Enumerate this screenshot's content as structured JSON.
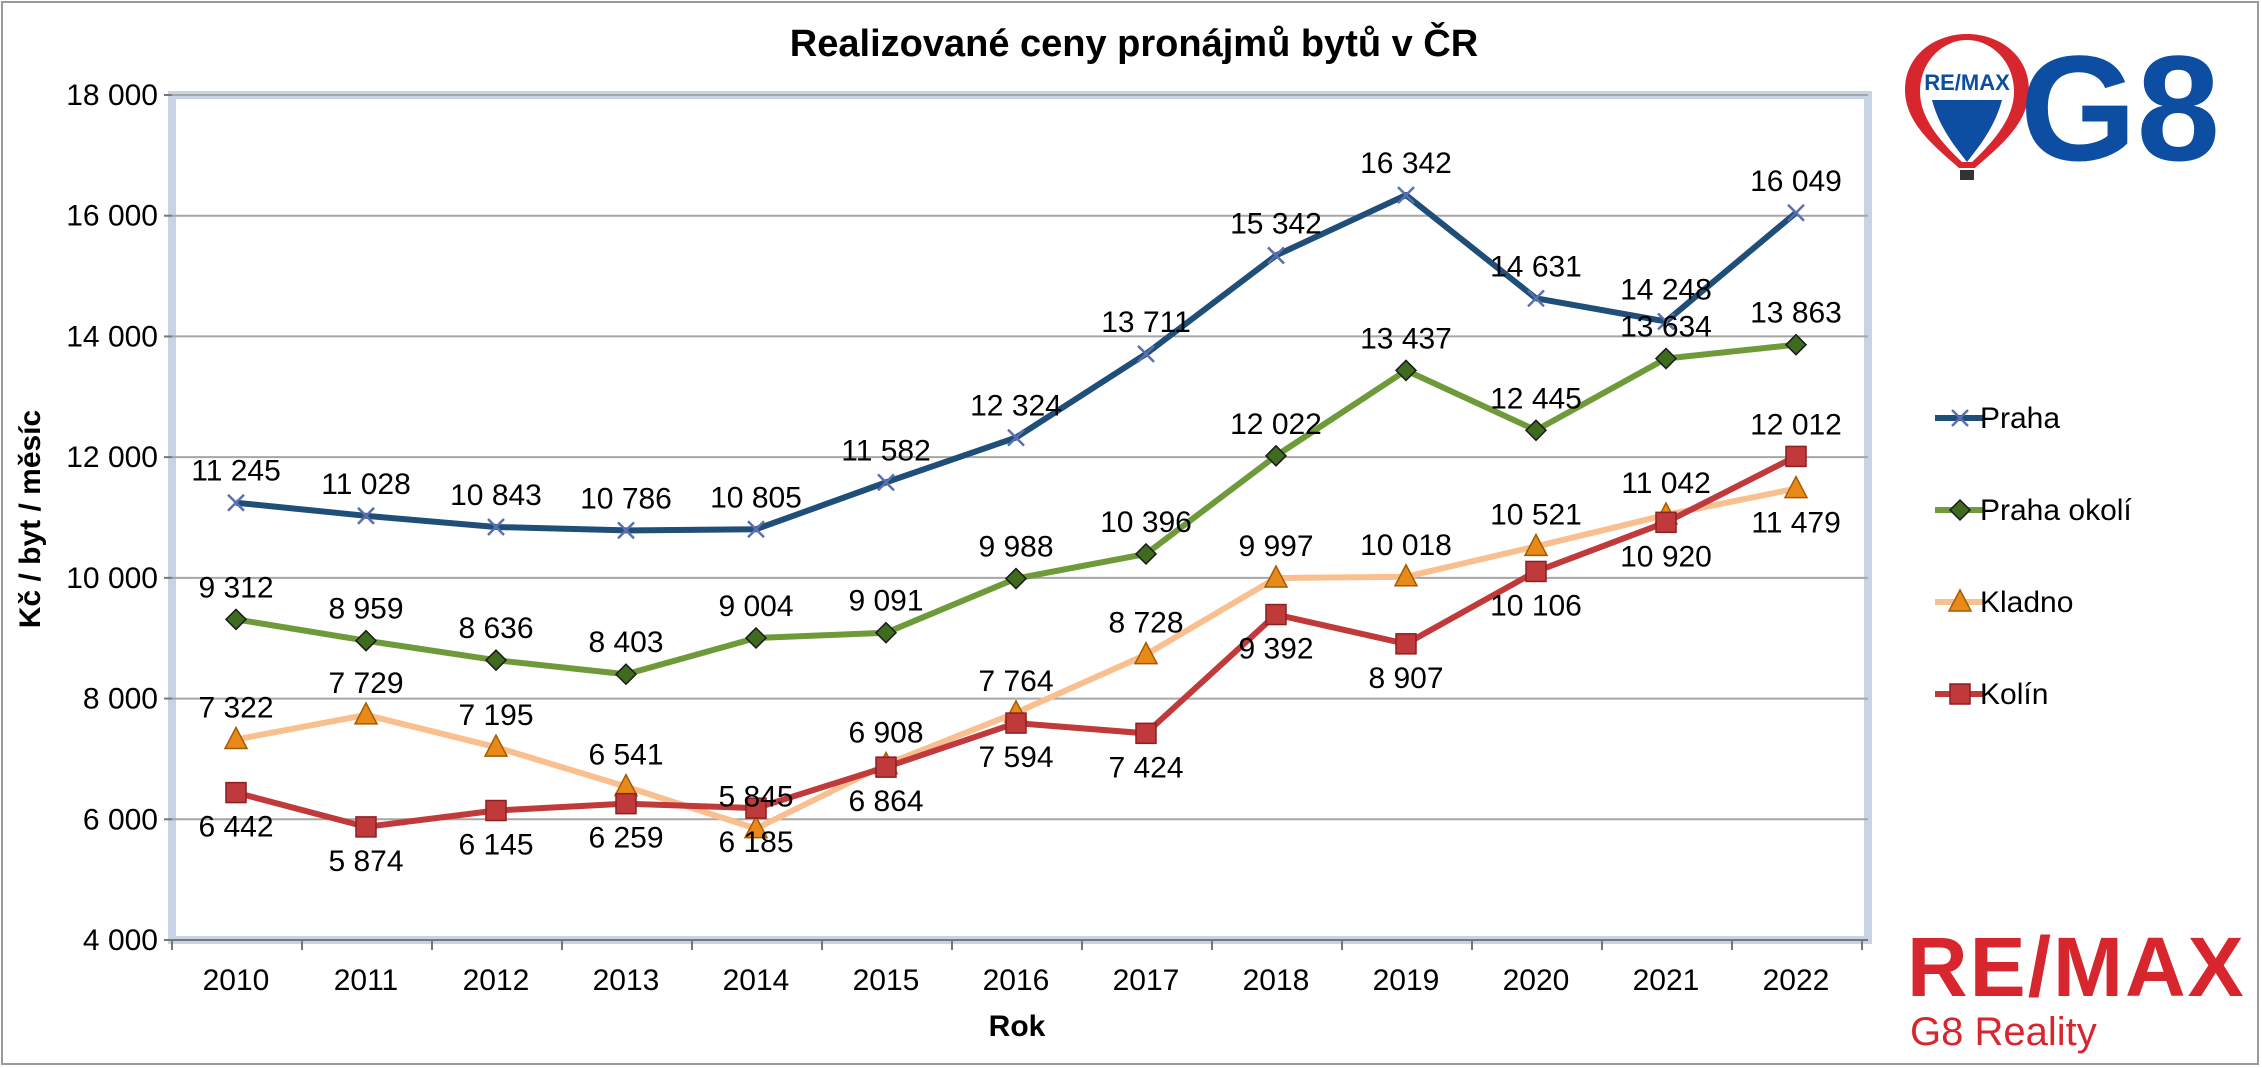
{
  "chart_data": {
    "type": "line",
    "title": "Realizované ceny pronájmů bytů v ČR",
    "xlabel": "Rok",
    "ylabel": "Kč / byt / měsíc",
    "ylim": [
      4000,
      18000
    ],
    "yticks": [
      4000,
      6000,
      8000,
      10000,
      12000,
      14000,
      16000,
      18000
    ],
    "ytick_labels": [
      "4 000",
      "6 000",
      "8 000",
      "10 000",
      "12 000",
      "14 000",
      "16 000",
      "18 000"
    ],
    "grid": true,
    "legend_position": "right",
    "categories": [
      "2010",
      "2011",
      "2012",
      "2013",
      "2014",
      "2015",
      "2016",
      "2017",
      "2018",
      "2019",
      "2020",
      "2021",
      "2022"
    ],
    "series": [
      {
        "name": "Praha",
        "color": "#1f4e79",
        "marker": "x",
        "values": [
          11245,
          11028,
          10843,
          10786,
          10805,
          11582,
          12324,
          13711,
          15342,
          16342,
          14631,
          14248,
          16049
        ],
        "labels": [
          "11 245",
          "11 028",
          "10 843",
          "10 786",
          "10 805",
          "11 582",
          "12 324",
          "13 711",
          "15 342",
          "16 342",
          "14 631",
          "14 248",
          "16 049"
        ]
      },
      {
        "name": "Praha okolí",
        "color": "#6f9a3a",
        "marker": "diamond",
        "values": [
          9312,
          8959,
          8636,
          8403,
          9004,
          9091,
          9988,
          10396,
          12022,
          13437,
          12445,
          13634,
          13863
        ],
        "labels": [
          "9 312",
          "8 959",
          "8 636",
          "8 403",
          "9 004",
          "9 091",
          "9 988",
          "10 396",
          "12 022",
          "13 437",
          "12 445",
          "13 634",
          "13 863"
        ]
      },
      {
        "name": "Kladno",
        "color": "#f9bf8f",
        "marker": "triangle",
        "values": [
          7322,
          7729,
          7195,
          6541,
          5845,
          6908,
          7764,
          8728,
          9997,
          10018,
          10521,
          11042,
          11479
        ],
        "labels": [
          "7 322",
          "7 729",
          "7 195",
          "6 541",
          "5 845",
          "6 908",
          "7 764",
          "8 728",
          "9 997",
          "10 018",
          "10 521",
          "11 042",
          "11 479"
        ]
      },
      {
        "name": "Kolín",
        "color": "#c0393b",
        "marker": "square",
        "values": [
          6442,
          5874,
          6145,
          6259,
          6185,
          6864,
          7594,
          7424,
          9392,
          8907,
          10106,
          10920,
          12012
        ],
        "labels": [
          "6 442",
          "5 874",
          "6 145",
          "6 259",
          "6 185",
          "6 864",
          "7 594",
          "7 424",
          "9 392",
          "8 907",
          "10 106",
          "10 920",
          "12 012"
        ]
      }
    ]
  },
  "logos": {
    "top_balloon_text": "RE/MAX",
    "top_g8_text": "G8",
    "bottom_remax_text": "RE/MAX",
    "bottom_subtitle": "G8 Reality",
    "brand_red": "#d7262e",
    "brand_blue": "#0d4ea2"
  }
}
